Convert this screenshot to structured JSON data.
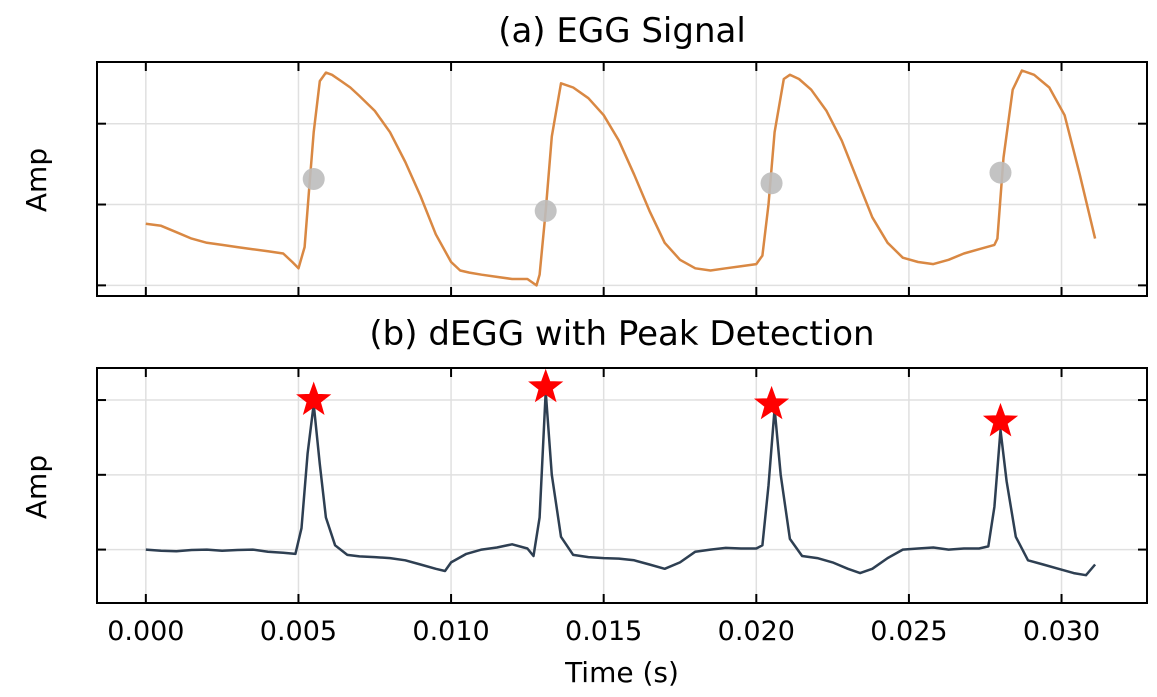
{
  "chart_data": [
    {
      "type": "line",
      "title": "(a) EGG Signal",
      "ylabel": "Amp",
      "xlabel": "",
      "xlim": [
        -0.0016,
        0.0328
      ],
      "ylim": [
        -0.05,
        1.05
      ],
      "y_ticks": [
        0.0,
        0.38,
        0.76
      ],
      "grid": true,
      "line_color": "#d98843",
      "marker_color": "#bdbdbd",
      "series": [
        {
          "x": [
            0.0,
            0.0005,
            0.001,
            0.0015,
            0.002,
            0.0025,
            0.003,
            0.0035,
            0.004,
            0.0045,
            0.0048,
            0.005,
            0.0052,
            0.00535,
            0.0055,
            0.0057,
            0.0059,
            0.0061,
            0.0064,
            0.0067,
            0.007,
            0.0075,
            0.008,
            0.0085,
            0.009,
            0.0095,
            0.01,
            0.0103,
            0.0106,
            0.011,
            0.0115,
            0.012,
            0.0125,
            0.0128,
            0.0129,
            0.0131,
            0.0133,
            0.0136,
            0.014,
            0.0145,
            0.015,
            0.0155,
            0.016,
            0.0165,
            0.017,
            0.0175,
            0.018,
            0.0185,
            0.019,
            0.0195,
            0.02,
            0.0202,
            0.0204,
            0.0206,
            0.0209,
            0.0211,
            0.0214,
            0.0218,
            0.0223,
            0.0228,
            0.0233,
            0.0238,
            0.0243,
            0.0248,
            0.0253,
            0.0258,
            0.0263,
            0.0268,
            0.0273,
            0.0278,
            0.0279,
            0.0281,
            0.0284,
            0.0287,
            0.0291,
            0.0296,
            0.0301,
            0.0306,
            0.0311
          ],
          "y": [
            0.29,
            0.28,
            0.25,
            0.22,
            0.2,
            0.19,
            0.18,
            0.17,
            0.16,
            0.15,
            0.11,
            0.08,
            0.18,
            0.45,
            0.72,
            0.96,
            1.0,
            0.99,
            0.96,
            0.93,
            0.89,
            0.82,
            0.72,
            0.58,
            0.42,
            0.24,
            0.11,
            0.07,
            0.06,
            0.05,
            0.04,
            0.03,
            0.03,
            0.0,
            0.05,
            0.35,
            0.7,
            0.95,
            0.93,
            0.88,
            0.8,
            0.68,
            0.52,
            0.35,
            0.2,
            0.12,
            0.08,
            0.07,
            0.08,
            0.09,
            0.1,
            0.14,
            0.38,
            0.72,
            0.97,
            0.99,
            0.97,
            0.92,
            0.82,
            0.68,
            0.5,
            0.32,
            0.2,
            0.13,
            0.11,
            0.1,
            0.12,
            0.15,
            0.17,
            0.19,
            0.22,
            0.6,
            0.92,
            1.01,
            0.99,
            0.93,
            0.8,
            0.52,
            0.22
          ],
          "markers_x": [
            0.0055,
            0.0131,
            0.0205,
            0.028
          ],
          "markers_y": [
            0.5,
            0.35,
            0.48,
            0.53
          ]
        }
      ]
    },
    {
      "type": "line",
      "title": "(b) dEGG with Peak Detection",
      "ylabel": "Amp",
      "xlabel": "Time (s)",
      "xlim": [
        -0.0016,
        0.0328
      ],
      "ylim": [
        -0.05,
        1.05
      ],
      "x_ticks": [
        "0.000",
        "0.005",
        "0.010",
        "0.015",
        "0.020",
        "0.025",
        "0.030"
      ],
      "x_tick_values": [
        0.0,
        0.005,
        0.01,
        0.015,
        0.02,
        0.025,
        0.03
      ],
      "y_ticks": [
        0.2,
        0.55,
        0.9
      ],
      "grid": true,
      "line_color": "#2e3f52",
      "peak_color": "#ff0000",
      "series": [
        {
          "x": [
            0.0,
            0.0005,
            0.001,
            0.0015,
            0.002,
            0.0025,
            0.003,
            0.0035,
            0.004,
            0.0045,
            0.0049,
            0.0051,
            0.0053,
            0.0055,
            0.0057,
            0.0059,
            0.0062,
            0.0066,
            0.007,
            0.0075,
            0.008,
            0.0085,
            0.009,
            0.0095,
            0.0098,
            0.01,
            0.0105,
            0.011,
            0.0115,
            0.012,
            0.0125,
            0.0127,
            0.0129,
            0.0131,
            0.0133,
            0.0136,
            0.014,
            0.0145,
            0.015,
            0.0155,
            0.016,
            0.0165,
            0.017,
            0.0175,
            0.018,
            0.0185,
            0.019,
            0.0195,
            0.02,
            0.0202,
            0.0204,
            0.0206,
            0.0208,
            0.0211,
            0.0215,
            0.022,
            0.0225,
            0.023,
            0.0234,
            0.0238,
            0.0243,
            0.0248,
            0.0253,
            0.0258,
            0.0263,
            0.0268,
            0.0273,
            0.0276,
            0.0278,
            0.028,
            0.0282,
            0.0285,
            0.0289,
            0.0294,
            0.0299,
            0.0304,
            0.0308,
            0.0311
          ],
          "y": [
            0.2,
            0.195,
            0.192,
            0.198,
            0.2,
            0.195,
            0.198,
            0.2,
            0.19,
            0.185,
            0.18,
            0.3,
            0.65,
            0.88,
            0.6,
            0.35,
            0.22,
            0.175,
            0.168,
            0.165,
            0.16,
            0.15,
            0.13,
            0.11,
            0.1,
            0.14,
            0.18,
            0.2,
            0.21,
            0.225,
            0.205,
            0.17,
            0.35,
            0.94,
            0.55,
            0.26,
            0.175,
            0.165,
            0.16,
            0.158,
            0.15,
            0.13,
            0.11,
            0.14,
            0.19,
            0.2,
            0.208,
            0.205,
            0.205,
            0.22,
            0.5,
            0.86,
            0.55,
            0.25,
            0.17,
            0.16,
            0.14,
            0.11,
            0.09,
            0.11,
            0.16,
            0.2,
            0.205,
            0.21,
            0.2,
            0.205,
            0.205,
            0.215,
            0.4,
            0.76,
            0.52,
            0.26,
            0.15,
            0.13,
            0.11,
            0.09,
            0.08,
            0.13
          ],
          "peaks_x": [
            0.0055,
            0.0131,
            0.0205,
            0.028
          ],
          "peaks_y": [
            0.9,
            0.96,
            0.88,
            0.8
          ]
        }
      ]
    }
  ]
}
